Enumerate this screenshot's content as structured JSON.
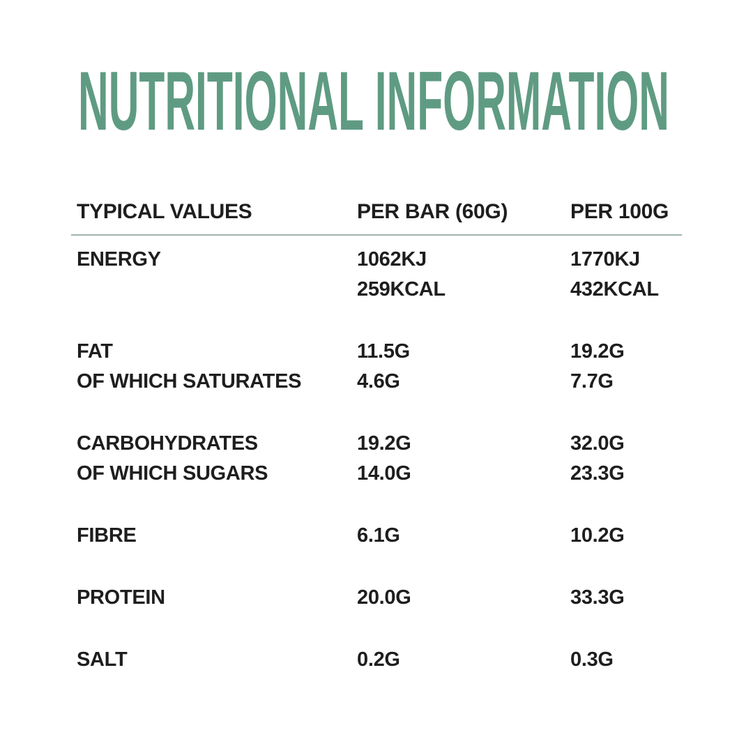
{
  "title": "NUTRITIONAL INFORMATION",
  "colors": {
    "title_green": "#5F9B83",
    "text_dark": "#1E1E1E",
    "divider": "#9FB3AC",
    "background": "#FFFFFF"
  },
  "table": {
    "headers": [
      "TYPICAL VALUES",
      "PER BAR (60G)",
      "PER 100G"
    ],
    "rows": [
      {
        "label": "ENERGY",
        "per_bar": "1062KJ",
        "per_100g": "1770KJ"
      },
      {
        "label": "",
        "per_bar": "259KCAL",
        "per_100g": "432KCAL"
      },
      {
        "label": "FAT",
        "per_bar": "11.5G",
        "per_100g": "19.2G"
      },
      {
        "label": "OF WHICH SATURATES",
        "per_bar": "4.6G",
        "per_100g": "7.7G"
      },
      {
        "label": "CARBOHYDRATES",
        "per_bar": "19.2G",
        "per_100g": "32.0G"
      },
      {
        "label": "OF WHICH SUGARS",
        "per_bar": "14.0G",
        "per_100g": "23.3G"
      },
      {
        "label": "FIBRE",
        "per_bar": "6.1G",
        "per_100g": "10.2G"
      },
      {
        "label": "PROTEIN",
        "per_bar": "20.0G",
        "per_100g": "33.3G"
      },
      {
        "label": "SALT",
        "per_bar": "0.2G",
        "per_100g": "0.3G"
      }
    ]
  }
}
